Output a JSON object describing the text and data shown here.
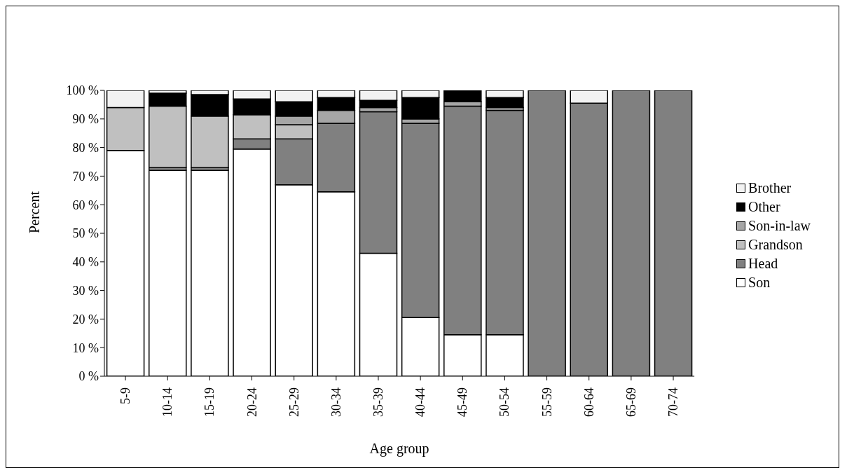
{
  "chart_data": {
    "type": "bar",
    "stacked": true,
    "xlabel": "Age group",
    "ylabel": "Percent",
    "categories": [
      "5-9",
      "10-14",
      "15-19",
      "20-24",
      "25-29",
      "30-34",
      "35-39",
      "40-44",
      "45-49",
      "50-54",
      "55-59",
      "60-64",
      "65-69",
      "70-74"
    ],
    "series": [
      {
        "name": "Son",
        "color": "#ffffff",
        "values": [
          79,
          72,
          72,
          79.5,
          67,
          64.5,
          43,
          20.5,
          14.5,
          14.5,
          0,
          0,
          0,
          0
        ]
      },
      {
        "name": "Head",
        "color": "#808080",
        "values": [
          0,
          1,
          1,
          3.5,
          16,
          24,
          49.5,
          68,
          80,
          78.5,
          100,
          95.5,
          100,
          100
        ]
      },
      {
        "name": "Grandson",
        "color": "#c0c0c0",
        "values": [
          15,
          21.5,
          18,
          8.5,
          5,
          0,
          0,
          0,
          0,
          0,
          0,
          0,
          0,
          0
        ]
      },
      {
        "name": "Son-in-law",
        "color": "#a6a6a6",
        "values": [
          0,
          0,
          0,
          0,
          3,
          4.5,
          1.5,
          1.5,
          1.5,
          1,
          0,
          0,
          0,
          0
        ]
      },
      {
        "name": "Other",
        "color": "#000000",
        "values": [
          0,
          4.5,
          7.5,
          5.5,
          5,
          4.5,
          2.5,
          7.5,
          4,
          3.5,
          0,
          0,
          0,
          0
        ]
      },
      {
        "name": "Brother",
        "color": "#f2f2f2",
        "values": [
          6,
          1,
          1.5,
          3,
          4,
          2.5,
          3.5,
          2.5,
          0,
          2.5,
          0,
          4.5,
          0,
          0
        ]
      }
    ],
    "ylim": [
      0,
      100
    ],
    "yticks": [
      {
        "value": 0,
        "label": "0 %"
      },
      {
        "value": 10,
        "label": "10 %"
      },
      {
        "value": 20,
        "label": "20 %"
      },
      {
        "value": 30,
        "label": "30 %"
      },
      {
        "value": 40,
        "label": "40 %"
      },
      {
        "value": 50,
        "label": "50 %"
      },
      {
        "value": 60,
        "label": "60 %"
      },
      {
        "value": 70,
        "label": "70 %"
      },
      {
        "value": 80,
        "label": "80 %"
      },
      {
        "value": 90,
        "label": "90 %"
      },
      {
        "value": 100,
        "label": "100 %"
      }
    ],
    "grid": false,
    "legend": "right"
  }
}
